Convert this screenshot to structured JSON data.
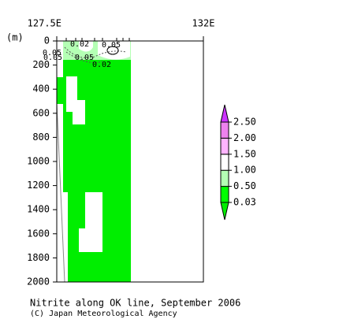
{
  "chart_data": {
    "type": "section",
    "title": "Nitrite along OK line, September 2006",
    "credit": "(C) Japan Meteorological Agency",
    "ylabel": "(m)",
    "xlim": [
      127.5,
      132
    ],
    "xticks": [
      {
        "value": 127.5,
        "label": "127.5E"
      },
      {
        "value": 132,
        "label": "132E"
      }
    ],
    "ylim": [
      0,
      2000
    ],
    "y_reversed": true,
    "yticks": [
      0,
      200,
      400,
      600,
      800,
      1000,
      1200,
      1400,
      1600,
      1800,
      2000
    ],
    "contour_labels": [
      "0.02",
      "0.05",
      "0.05",
      "0.05",
      "0.05",
      "0.02"
    ],
    "colorbar": {
      "ticks": [
        0.03,
        {
          "value": 0.5,
          "label": "0.50"
        },
        {
          "value": 1.0,
          "label": "1.00"
        },
        {
          "value": 1.5,
          "label": "1.50"
        },
        {
          "value": 2.0,
          "label": "2.00"
        },
        {
          "value": 2.5,
          "label": "2.50"
        }
      ],
      "colors": [
        "#00ee00",
        "#00ff00",
        "#b4ffb4",
        "#ffffff",
        "#ffb4ff",
        "#ee82ee",
        "#cc33ff"
      ]
    }
  }
}
